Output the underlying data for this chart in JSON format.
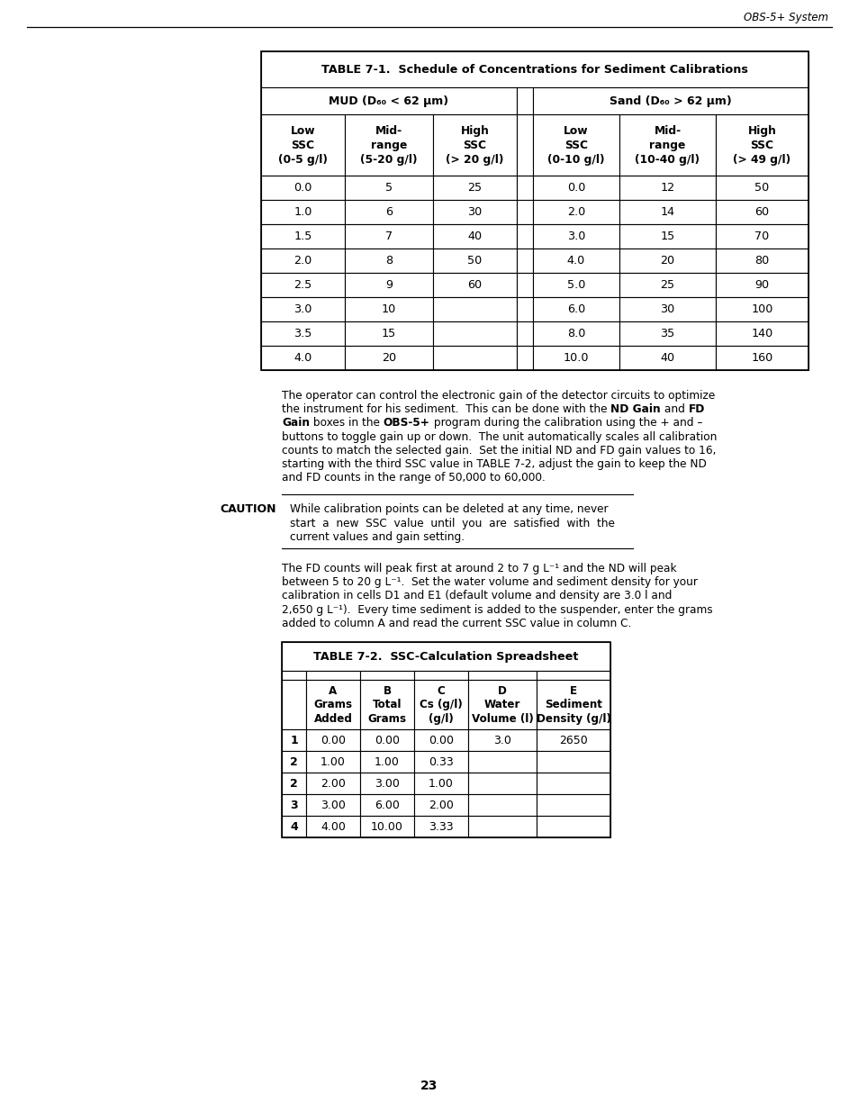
{
  "page_header": "OBS-5+ System",
  "page_number": "23",
  "table1_title": "TABLE 7-1.  Schedule of Concentrations for Sediment Calibrations",
  "mud_header": "MUD (D₆₀ < 62 μm)",
  "sand_header": "Sand (D₆₀ > 62 μm)",
  "table1_col_headers": [
    "Low\nSSC\n(0-5 g/l)",
    "Mid-\nrange\n(5-20 g/l)",
    "High\nSSC\n(> 20 g/l)",
    "Low\nSSC\n(0-10 g/l)",
    "Mid-\nrange\n(10-40 g/l)",
    "High\nSSC\n(> 49 g/l)"
  ],
  "table1_data": [
    [
      "0.0",
      "5",
      "25",
      "0.0",
      "12",
      "50"
    ],
    [
      "1.0",
      "6",
      "30",
      "2.0",
      "14",
      "60"
    ],
    [
      "1.5",
      "7",
      "40",
      "3.0",
      "15",
      "70"
    ],
    [
      "2.0",
      "8",
      "50",
      "4.0",
      "20",
      "80"
    ],
    [
      "2.5",
      "9",
      "60",
      "5.0",
      "25",
      "90"
    ],
    [
      "3.0",
      "10",
      "",
      "6.0",
      "30",
      "100"
    ],
    [
      "3.5",
      "15",
      "",
      "8.0",
      "35",
      "140"
    ],
    [
      "4.0",
      "20",
      "",
      "10.0",
      "40",
      "160"
    ]
  ],
  "table2_title": "TABLE 7-2.  SSC-Calculation Spreadsheet",
  "table2_col_headers_line1": [
    "",
    "A",
    "B",
    "C",
    "D",
    "E"
  ],
  "table2_col_headers_line2": [
    "",
    "Grams",
    "Total",
    "Cs (g/l)",
    "Water",
    "Sediment"
  ],
  "table2_col_headers_line3": [
    "",
    "Added",
    "Grams",
    "(g/l)",
    "Volume (l)",
    "Density (g/l)"
  ],
  "table2_data": [
    [
      "1",
      "0.00",
      "0.00",
      "0.00",
      "3.0",
      "2650"
    ],
    [
      "2",
      "1.00",
      "1.00",
      "0.33",
      "",
      ""
    ],
    [
      "2",
      "2.00",
      "3.00",
      "1.00",
      "",
      ""
    ],
    [
      "3",
      "3.00",
      "6.00",
      "2.00",
      "",
      ""
    ],
    [
      "4",
      "4.00",
      "10.00",
      "3.33",
      "",
      ""
    ]
  ],
  "para1_plain_lines": [
    "The operator can control the electronic gain of the detector circuits to optimize",
    "the instrument for his sediment.  This can be done with the ",
    " boxes in the ",
    "buttons to toggle gain up or down.  The unit automatically scales all calibration",
    "counts to match the selected gain.  Set the initial ND and FD gain values to 16,",
    "starting with the third SSC value in TABLE 7-2, adjust the gain to keep the ND",
    "and FD counts in the range of 50,000 to 60,000."
  ],
  "caution_lines": [
    "While calibration points can be deleted at any time, never",
    "start  a  new  SSC  value  until  you  are  satisfied  with  the",
    "current values and gain setting."
  ],
  "para2_lines": [
    "The FD counts will peak first at around 2 to 7 g L⁻¹ and the ND will peak",
    "between 5 to 20 g L⁻¹.  Set the water volume and sediment density for your",
    "calibration in cells D1 and E1 (default volume and density are 3.0 l and",
    "2,650 g L⁻¹).  Every time sediment is added to the suspender, enter the grams",
    "added to column A and read the current SSC value in column C."
  ]
}
